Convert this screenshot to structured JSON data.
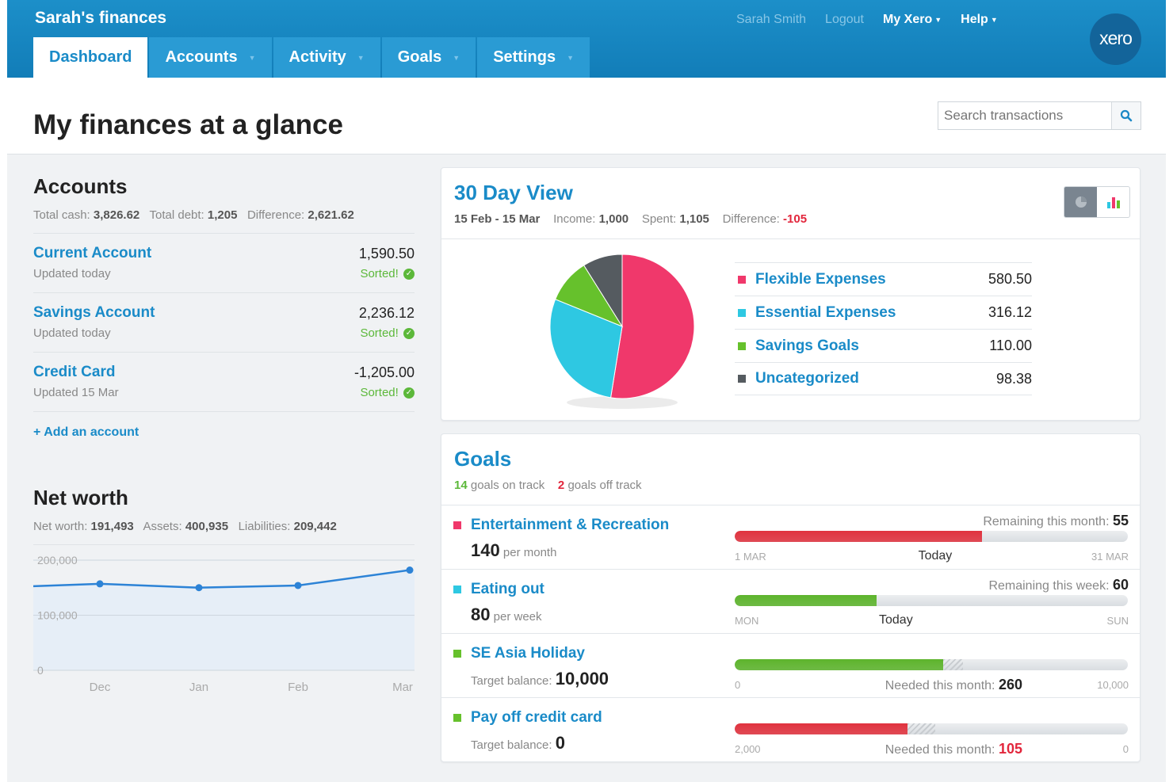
{
  "app_title": "Sarah's finances",
  "user_nav": {
    "user": "Sarah Smith",
    "logout": "Logout",
    "my_xero": "My Xero",
    "help": "Help"
  },
  "logo_text": "xero",
  "tabs": [
    {
      "label": "Dashboard"
    },
    {
      "label": "Accounts"
    },
    {
      "label": "Activity"
    },
    {
      "label": "Goals"
    },
    {
      "label": "Settings"
    }
  ],
  "page_title": "My finances at a glance",
  "search": {
    "placeholder": "Search transactions"
  },
  "accounts": {
    "title": "Accounts",
    "total_cash_label": "Total cash:",
    "total_cash": "3,826.62",
    "total_debt_label": "Total debt:",
    "total_debt": "1,205",
    "difference_label": "Difference:",
    "difference": "2,621.62",
    "items": [
      {
        "name": "Current Account",
        "updated": "Updated today",
        "balance": "1,590.50",
        "status": "Sorted!"
      },
      {
        "name": "Savings Account",
        "updated": "Updated today",
        "balance": "2,236.12",
        "status": "Sorted!"
      },
      {
        "name": "Credit Card",
        "updated": "Updated 15 Mar",
        "balance": "-1,205.00",
        "status": "Sorted!"
      }
    ],
    "add_link": "+ Add an account"
  },
  "net_worth": {
    "title": "Net worth",
    "net_worth_label": "Net worth:",
    "net_worth": "191,493",
    "assets_label": "Assets:",
    "assets": "400,935",
    "liabilities_label": "Liabilities:",
    "liabilities": "209,442"
  },
  "view30": {
    "title": "30 Day View",
    "range": "15 Feb - 15 Mar",
    "income_label": "Income:",
    "income": "1,000",
    "spent_label": "Spent:",
    "spent": "1,105",
    "difference_label": "Difference:",
    "difference": "-105",
    "categories": [
      {
        "name": "Flexible Expenses",
        "value": "580.50",
        "color": "#f0386b"
      },
      {
        "name": "Essential Expenses",
        "value": "316.12",
        "color": "#2ec8e2"
      },
      {
        "name": "Savings Goals",
        "value": "110.00",
        "color": "#66c12c"
      },
      {
        "name": "Uncategorized",
        "value": "98.38",
        "color": "#555b60"
      }
    ]
  },
  "goals": {
    "title": "Goals",
    "on_track_count": "14",
    "on_track_label": "goals on track",
    "off_track_count": "2",
    "off_track_label": "goals off track",
    "items": [
      {
        "name": "Entertainment & Recreation",
        "amount": "140",
        "amount_suffix": "per month",
        "note_label": "Remaining this month:",
        "note_value": "55",
        "start": "1 MAR",
        "end": "31 MAR",
        "today": "Today",
        "progress": 0.63,
        "today_pos": 0.51,
        "color": "#e0323e",
        "sq_color": "#f0386b"
      },
      {
        "name": "Eating out",
        "amount": "80",
        "amount_suffix": "per week",
        "note_label": "Remaining this week:",
        "note_value": "60",
        "start": "MON",
        "end": "SUN",
        "today": "Today",
        "progress": 0.36,
        "today_pos": 0.41,
        "color": "#5db42c",
        "sq_color": "#2ec8e2"
      },
      {
        "name": "SE Asia Holiday",
        "amount_prefix": "Target balance:",
        "amount": "10,000",
        "start": "0",
        "end": "10,000",
        "needed_label": "Needed this month:",
        "needed_value": "260",
        "progress": 0.53,
        "hatch_to": 0.58,
        "color": "#5db42c",
        "sq_color": "#66c12c"
      },
      {
        "name": "Pay off credit card",
        "amount_prefix": "Target balance:",
        "amount": "0",
        "start": "2,000",
        "end": "0",
        "needed_label": "Needed this month:",
        "needed_value": "105",
        "progress": 0.44,
        "hatch_to": 0.51,
        "color": "#e0323e",
        "sq_color": "#66c12c"
      }
    ]
  },
  "chart_data": [
    {
      "type": "pie",
      "categories": [
        "Flexible Expenses",
        "Essential Expenses",
        "Savings Goals",
        "Uncategorized"
      ],
      "values": [
        580.5,
        316.12,
        110.0,
        98.38
      ]
    },
    {
      "type": "area",
      "categories": [
        "Dec",
        "Jan",
        "Feb",
        "Mar"
      ],
      "values": [
        157000,
        150000,
        154000,
        182000
      ],
      "yticks": [
        "0",
        "100,000",
        "200,000"
      ],
      "ylim": [
        0,
        200000
      ],
      "grid": true
    }
  ]
}
